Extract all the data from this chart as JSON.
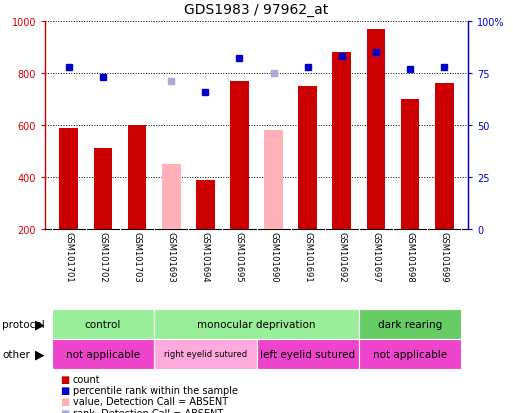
{
  "title": "GDS1983 / 97962_at",
  "samples": [
    "GSM101701",
    "GSM101702",
    "GSM101703",
    "GSM101693",
    "GSM101694",
    "GSM101695",
    "GSM101690",
    "GSM101691",
    "GSM101692",
    "GSM101697",
    "GSM101698",
    "GSM101699"
  ],
  "count_values": [
    590,
    510,
    600,
    null,
    390,
    770,
    null,
    750,
    880,
    970,
    700,
    760
  ],
  "count_absent": [
    null,
    null,
    null,
    450,
    null,
    null,
    580,
    null,
    null,
    null,
    null,
    null
  ],
  "rank_values": [
    78,
    73,
    null,
    null,
    66,
    82,
    null,
    78,
    83,
    85,
    77,
    78
  ],
  "rank_absent": [
    null,
    null,
    null,
    71,
    null,
    null,
    75,
    null,
    null,
    null,
    null,
    null
  ],
  "count_color": "#cc0000",
  "count_absent_color": "#ffb0b8",
  "rank_color": "#0000cc",
  "rank_absent_color": "#aaaadd",
  "ylim_left": [
    200,
    1000
  ],
  "ylim_right": [
    0,
    100
  ],
  "yticks_left": [
    200,
    400,
    600,
    800,
    1000
  ],
  "yticks_right": [
    0,
    25,
    50,
    75,
    100
  ],
  "protocol_groups": [
    {
      "label": "control",
      "start": 0,
      "end": 2,
      "color": "#99ee99"
    },
    {
      "label": "monocular deprivation",
      "start": 3,
      "end": 8,
      "color": "#99ee99"
    },
    {
      "label": "dark rearing",
      "start": 9,
      "end": 11,
      "color": "#66cc66"
    }
  ],
  "other_groups": [
    {
      "label": "not applicable",
      "start": 0,
      "end": 2,
      "color": "#ee44cc"
    },
    {
      "label": "right eyelid sutured",
      "start": 3,
      "end": 5,
      "color": "#ffaadd"
    },
    {
      "label": "left eyelid sutured",
      "start": 6,
      "end": 8,
      "color": "#ee44cc"
    },
    {
      "label": "not applicable",
      "start": 9,
      "end": 11,
      "color": "#ee44cc"
    }
  ],
  "bar_width": 0.55,
  "bg_color": "#ffffff",
  "tick_area_color": "#cccccc",
  "legend_items": [
    {
      "color": "#cc0000",
      "label": "count"
    },
    {
      "color": "#0000cc",
      "label": "percentile rank within the sample"
    },
    {
      "color": "#ffb0b8",
      "label": "value, Detection Call = ABSENT"
    },
    {
      "color": "#aaaadd",
      "label": "rank, Detection Call = ABSENT"
    }
  ]
}
